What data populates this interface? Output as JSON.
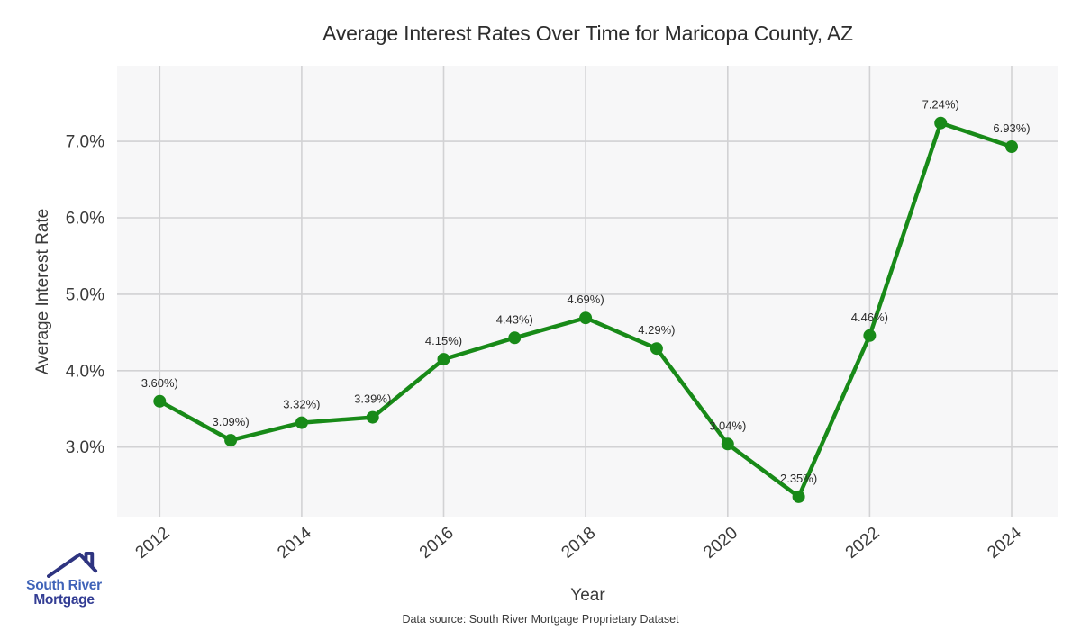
{
  "title": "Average Interest Rates Over Time for Maricopa County, AZ",
  "axes": {
    "x_label": "Year",
    "y_label": "Average Interest Rate"
  },
  "footer": {
    "text": "Data source: South River Mortgage Proprietary Dataset"
  },
  "logo": {
    "icon": "house-roof-icon",
    "line1": "South River",
    "line2": "Mortgage"
  },
  "colors": {
    "line": "#188a18",
    "marker": "#188a18",
    "plot_bg": "#f7f7f8",
    "grid": "#d2d2d4",
    "tick_text": "#3a3a3a",
    "point_label_text": "#2b2b2b",
    "logo_blue": "#3f63b8",
    "logo_navy": "#333d94",
    "logo_roof": "#2e3480"
  },
  "chart_data": {
    "type": "line",
    "title": "Average Interest Rates Over Time for Maricopa County, AZ",
    "xlabel": "Year",
    "ylabel": "Average Interest Rate",
    "x": [
      2012,
      2013,
      2014,
      2015,
      2016,
      2017,
      2018,
      2019,
      2020,
      2021,
      2022,
      2023,
      2024
    ],
    "series": [
      {
        "name": "Average Interest Rate",
        "values": [
          3.6,
          3.09,
          3.32,
          3.39,
          4.15,
          4.43,
          4.69,
          4.29,
          3.04,
          2.35,
          4.46,
          7.24,
          6.93
        ]
      }
    ],
    "point_labels": [
      "3.60%)",
      "3.09%)",
      "3.32%)",
      "3.39%)",
      "4.15%)",
      "4.43%)",
      "4.69%)",
      "4.29%)",
      "3.04%)",
      "2.35%)",
      "4.46%)",
      "7.24%)",
      "6.93%)"
    ],
    "x_ticks": [
      2012,
      2014,
      2016,
      2018,
      2020,
      2022,
      2024
    ],
    "x_tick_labels": [
      "2012",
      "2014",
      "2016",
      "2018",
      "2020",
      "2022",
      "2024"
    ],
    "y_ticks": [
      3,
      4,
      5,
      6,
      7
    ],
    "y_tick_labels": [
      "3.0%",
      "4.0%",
      "5.0%",
      "6.0%",
      "7.0%"
    ],
    "xlim": [
      2011.4,
      2024.66
    ],
    "ylim": [
      2.09,
      7.99
    ],
    "grid": true,
    "legend": "none",
    "marker": "circle"
  }
}
